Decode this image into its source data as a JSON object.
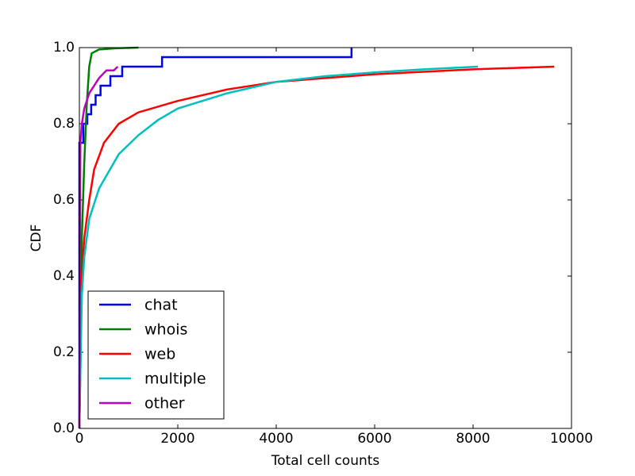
{
  "chart_data": {
    "type": "line",
    "xlabel": "Total cell counts",
    "ylabel": "CDF",
    "xlim": [
      0,
      10000
    ],
    "ylim": [
      0,
      1
    ],
    "xticks": [
      0,
      2000,
      4000,
      6000,
      8000,
      10000
    ],
    "yticks": [
      {
        "value": 0,
        "label": "0.0"
      },
      0.2,
      0.4,
      0.6,
      0.8,
      {
        "value": 1,
        "label": "1.0"
      }
    ],
    "legend": "lower left",
    "series": [
      {
        "name": "chat",
        "color": "#0000ff",
        "x": [
          0,
          0,
          80,
          80,
          160,
          160,
          240,
          240,
          330,
          330,
          430,
          430,
          630,
          630,
          870,
          870,
          1680,
          1680,
          5530,
          5530
        ],
        "values": [
          0,
          0.75,
          0.75,
          0.8,
          0.8,
          0.825,
          0.825,
          0.85,
          0.85,
          0.875,
          0.875,
          0.9,
          0.9,
          0.925,
          0.925,
          0.95,
          0.95,
          0.975,
          0.975,
          1.0
        ]
      },
      {
        "name": "whois",
        "color": "#008000",
        "x": [
          0,
          50,
          100,
          150,
          200,
          250,
          400,
          700,
          1200
        ],
        "values": [
          0,
          0.5,
          0.7,
          0.85,
          0.95,
          0.985,
          0.995,
          0.998,
          1.0
        ]
      },
      {
        "name": "web",
        "color": "#ff0000",
        "x": [
          0,
          50,
          100,
          200,
          300,
          500,
          800,
          1200,
          2000,
          3000,
          4000,
          6000,
          8000,
          9650
        ],
        "values": [
          0,
          0.4,
          0.5,
          0.6,
          0.68,
          0.75,
          0.8,
          0.83,
          0.86,
          0.89,
          0.91,
          0.93,
          0.943,
          0.95
        ]
      },
      {
        "name": "multiple",
        "color": "#00bfbf",
        "x": [
          0,
          50,
          100,
          200,
          400,
          800,
          1200,
          1600,
          2000,
          3000,
          4000,
          5000,
          6000,
          7000,
          8100
        ],
        "values": [
          0,
          0.35,
          0.45,
          0.55,
          0.63,
          0.72,
          0.77,
          0.81,
          0.84,
          0.88,
          0.91,
          0.925,
          0.935,
          0.943,
          0.95
        ]
      },
      {
        "name": "other",
        "color": "#bf00bf",
        "x": [
          0,
          20,
          50,
          100,
          200,
          300,
          400,
          550,
          700,
          780
        ],
        "values": [
          0,
          0.75,
          0.8,
          0.84,
          0.88,
          0.9,
          0.92,
          0.94,
          0.94,
          0.95
        ]
      }
    ]
  }
}
